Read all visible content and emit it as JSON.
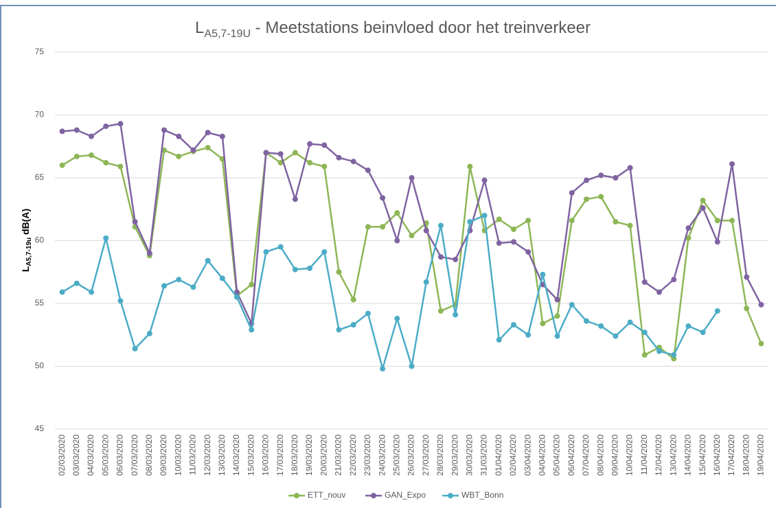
{
  "chart_data": {
    "type": "line",
    "title": {
      "main": "L",
      "sub": "A5,7-19U",
      "rest": " - Meetstations beinvloed door het treinverkeer"
    },
    "y_label": {
      "main": "L",
      "sub": "A5,7-19u",
      "rest": " dB(A)"
    },
    "categories": [
      "02/03/2020",
      "03/03/2020",
      "04/03/2020",
      "05/03/2020",
      "06/03/2020",
      "07/03/2020",
      "08/03/2020",
      "09/03/2020",
      "10/03/2020",
      "11/03/2020",
      "12/03/2020",
      "13/03/2020",
      "14/03/2020",
      "15/03/2020",
      "16/03/2020",
      "17/03/2020",
      "18/03/2020",
      "19/03/2020",
      "20/03/2020",
      "21/03/2020",
      "22/03/2020",
      "23/03/2020",
      "24/03/2020",
      "25/03/2020",
      "26/03/2020",
      "27/03/2020",
      "28/03/2020",
      "29/03/2020",
      "30/03/2020",
      "31/03/2020",
      "01/04/2020",
      "02/04/2020",
      "03/04/2020",
      "04/04/2020",
      "05/04/2020",
      "06/04/2020",
      "07/04/2020",
      "08/04/2020",
      "09/04/2020",
      "10/04/2020",
      "11/04/2020",
      "12/04/2020",
      "13/04/2020",
      "14/04/2020",
      "15/04/2020",
      "16/04/2020",
      "17/04/2020",
      "18/04/2020",
      "19/04/2020"
    ],
    "series": [
      {
        "name": "ETT_nouv",
        "color": "#8db656",
        "values": [
          66.0,
          66.7,
          66.8,
          66.2,
          65.9,
          61.1,
          58.8,
          67.2,
          66.7,
          67.1,
          67.4,
          66.5,
          55.6,
          56.5,
          67.0,
          66.2,
          67.0,
          66.2,
          65.9,
          57.5,
          55.3,
          61.1,
          61.1,
          62.2,
          60.4,
          61.4,
          54.4,
          54.9,
          65.9,
          60.8,
          61.7,
          60.9,
          61.6,
          53.4,
          54.0,
          61.6,
          63.3,
          63.5,
          61.5,
          61.2,
          50.9,
          51.5,
          50.6,
          60.2,
          63.2,
          61.6,
          61.6,
          54.6,
          51.8
        ]
      },
      {
        "name": "GAN_Expo",
        "color": "#7f63a1",
        "values": [
          68.7,
          68.8,
          68.3,
          69.1,
          69.3,
          61.5,
          59.0,
          68.8,
          68.3,
          67.2,
          68.6,
          68.3,
          55.9,
          53.4,
          67.0,
          66.9,
          63.3,
          67.7,
          67.6,
          66.6,
          66.3,
          65.6,
          63.4,
          60.0,
          65.0,
          60.8,
          58.7,
          58.5,
          60.8,
          64.8,
          59.8,
          59.9,
          59.1,
          56.5,
          55.3,
          63.8,
          64.8,
          65.2,
          65.0,
          65.8,
          56.7,
          55.9,
          56.9,
          61.0,
          62.6,
          59.9,
          66.1,
          57.1,
          54.9
        ]
      },
      {
        "name": "WBT_Bonn",
        "color": "#4bacc6",
        "values": [
          55.9,
          56.6,
          55.9,
          60.2,
          55.2,
          51.4,
          52.6,
          56.4,
          56.9,
          56.3,
          58.4,
          57.0,
          55.5,
          52.9,
          59.1,
          59.5,
          57.7,
          57.8,
          59.1,
          52.9,
          53.3,
          54.2,
          49.8,
          53.8,
          50.0,
          56.7,
          61.2,
          54.1,
          61.5,
          62.0,
          52.1,
          53.3,
          52.5,
          57.3,
          52.4,
          54.9,
          53.6,
          53.2,
          52.4,
          53.5,
          52.7,
          51.2,
          50.9,
          53.2,
          52.7,
          54.4,
          null,
          null,
          null
        ]
      }
    ],
    "ylim": [
      45,
      75
    ],
    "yticks": [
      45,
      50,
      55,
      60,
      65,
      70,
      75
    ],
    "grid": true,
    "legend": "bottom"
  }
}
